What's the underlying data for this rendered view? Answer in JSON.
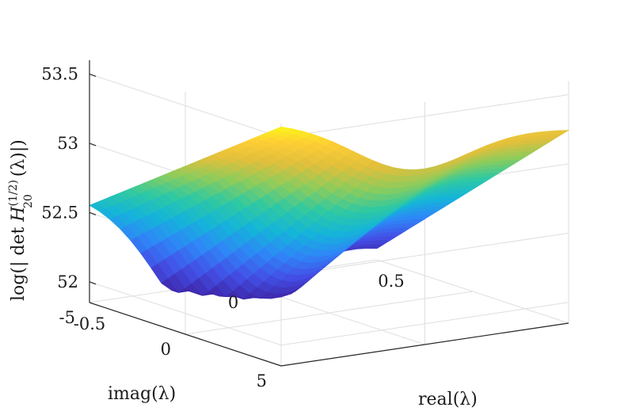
{
  "chart_data": {
    "type": "surface",
    "title": "",
    "zlabel": {
      "prefix": "log(| det ",
      "symbol": "H",
      "subscript": "20",
      "superscript": "(1/2)",
      "suffix": "(λ)|)"
    },
    "xlabel": "real(λ)",
    "ylabel": "imag(λ)",
    "xticks": [
      "-0.5",
      "0",
      "0.5"
    ],
    "yticks": [
      "5",
      "0",
      "-5"
    ],
    "zticks": [
      "52",
      "52.5",
      "53",
      "53.5"
    ],
    "xlim": [
      -0.5,
      0.5
    ],
    "ylim": [
      -5,
      5
    ],
    "zlim": [
      51.85,
      53.6
    ],
    "grid": true,
    "colormap": [
      "#3e26a8",
      "#4350e7",
      "#2e87f7",
      "#14b5d9",
      "#2fc9a2",
      "#8ccc5c",
      "#e0bf3c",
      "#fecd35",
      "#f9fb14"
    ],
    "surface_min_approx": 51.85,
    "surface_peak": {
      "x": -0.5,
      "y": -5,
      "z": 53.6
    },
    "corner_values": [
      {
        "x": -0.5,
        "y": 5,
        "z": 52.62
      },
      {
        "x": 0.5,
        "y": 5,
        "z": 51.95
      },
      {
        "x": 0.5,
        "y": -5,
        "z": 53.25
      },
      {
        "x": -0.5,
        "y": -5,
        "z": 53.6
      }
    ]
  }
}
